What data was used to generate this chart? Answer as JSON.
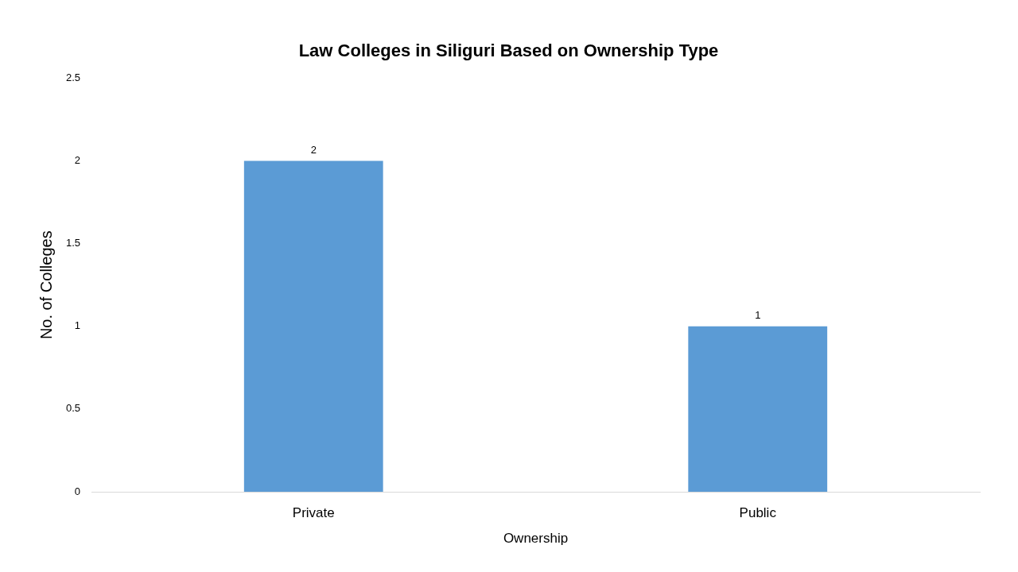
{
  "chart_data": {
    "type": "bar",
    "title": "Law Colleges in Siliguri Based on Ownership Type",
    "xlabel": "Ownership",
    "ylabel": "No. of Colleges",
    "categories": [
      "Private",
      "Public"
    ],
    "values": [
      2,
      1
    ],
    "color": "#5b9bd5",
    "ylim": [
      0,
      2.5
    ],
    "yticks": [
      0,
      0.5,
      1,
      1.5,
      2,
      2.5
    ],
    "grid": false,
    "data_labels": true
  }
}
